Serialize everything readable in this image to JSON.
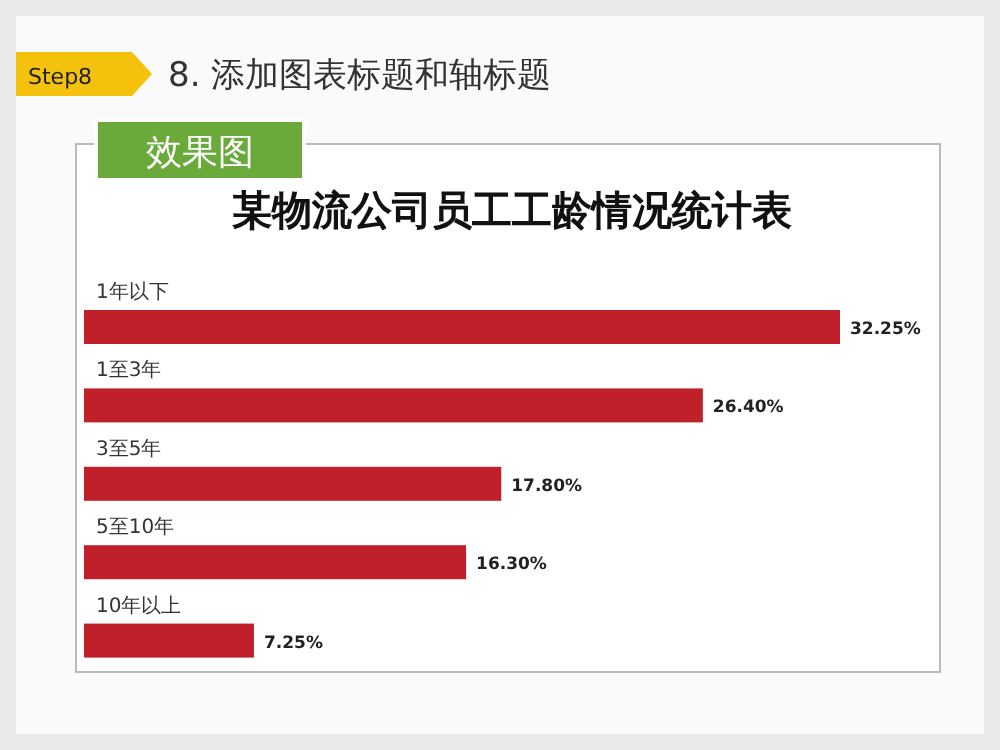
{
  "chart_data": {
    "type": "bar",
    "orientation": "horizontal",
    "title": "某物流公司员工工龄情况统计表",
    "annotations": [
      "Step8",
      "8. 添加图表标题和轴标题",
      "效果图"
    ],
    "categories": [
      "1年以下",
      "1至3年",
      "3至5年",
      "5至10年",
      "10年以上"
    ],
    "values": [
      32.25,
      26.4,
      17.8,
      16.3,
      7.25
    ],
    "value_labels": [
      "32.25%",
      "26.40%",
      "17.80%",
      "16.30%",
      "7.25%"
    ],
    "color": "#c0202a"
  }
}
